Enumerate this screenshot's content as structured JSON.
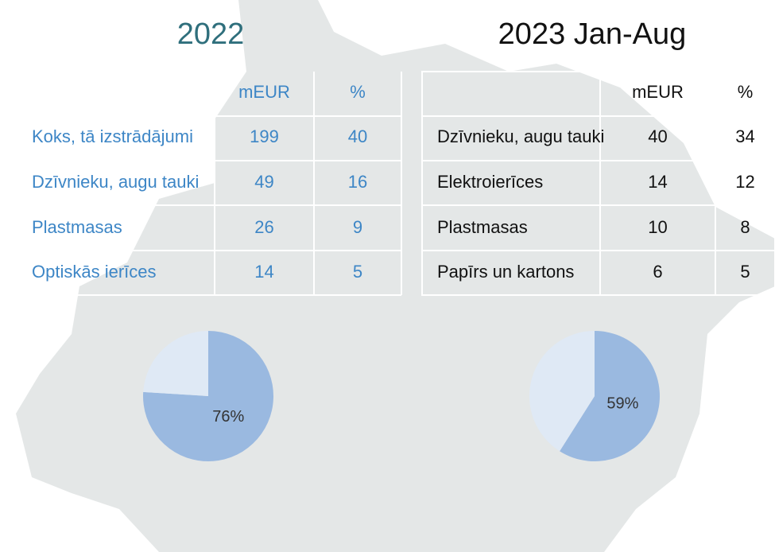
{
  "tables": [
    {
      "title": "2022",
      "columns": [
        "mEUR",
        "%"
      ],
      "rows": [
        [
          "Koks, tā izstrādājumi",
          "199",
          "40"
        ],
        [
          "Dzīvnieku, augu tauki",
          "49",
          "16"
        ],
        [
          "Plastmasas",
          "26",
          "9"
        ],
        [
          "Optiskās ierīces",
          "14",
          "5"
        ]
      ]
    },
    {
      "title": "2023 Jan-Aug",
      "columns": [
        "mEUR",
        "%"
      ],
      "rows": [
        [
          "Dzīvnieku, augu tauki",
          "40",
          "34"
        ],
        [
          "Elektroierīces",
          "14",
          "12"
        ],
        [
          "Plastmasas",
          "10",
          "8"
        ],
        [
          "Papīrs un kartons",
          "6",
          "5"
        ]
      ]
    }
  ],
  "chart_data": [
    {
      "type": "pie",
      "values": [
        76,
        24
      ],
      "value_labels": [
        "76%",
        null
      ],
      "colors": [
        "#9ab9e0",
        "#dfe9f5"
      ]
    },
    {
      "type": "pie",
      "values": [
        59,
        41
      ],
      "value_labels": [
        "59%",
        null
      ],
      "colors": [
        "#9ab9e0",
        "#dfe9f5"
      ]
    }
  ]
}
